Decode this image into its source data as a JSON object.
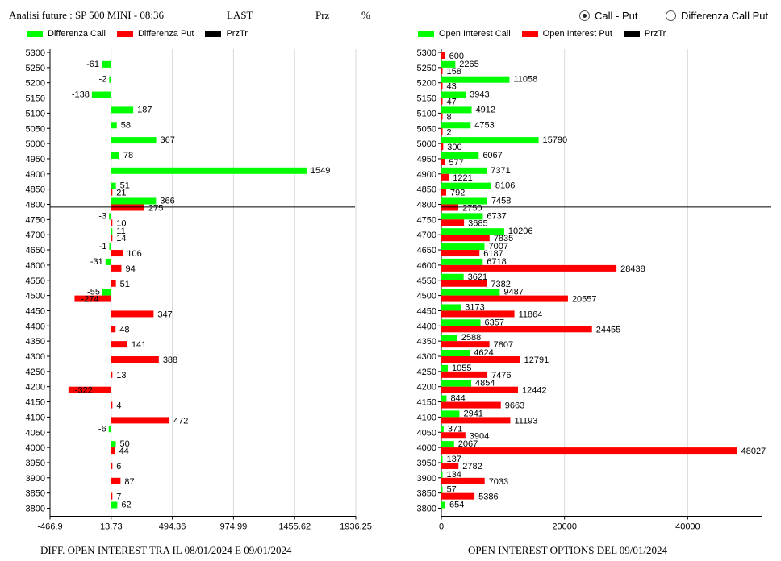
{
  "header": {
    "title": "Analisi future : SP 500 MINI - 08:36",
    "last_label": "LAST",
    "prz_label": "Prz",
    "pct_label": "%"
  },
  "mode_options": [
    {
      "label": "Call - Put",
      "selected": true
    },
    {
      "label": "Differenza Call Put",
      "selected": false
    }
  ],
  "colors": {
    "call": "#00ff00",
    "put": "#ff0000",
    "price": "#000000"
  },
  "chart_data": [
    {
      "type": "bar",
      "orientation": "horizontal",
      "xlabel": "DIFF. OPEN INTEREST TRA IL 08/01/2024 E 09/01/2024",
      "legend": [
        "Differenza Call",
        "Differenza Put",
        "PrzTr"
      ],
      "legend_position": "top",
      "categories": [
        5300,
        5250,
        5200,
        5150,
        5100,
        5050,
        5000,
        4950,
        4900,
        4850,
        4800,
        4750,
        4700,
        4650,
        4600,
        4550,
        4500,
        4450,
        4400,
        4350,
        4300,
        4250,
        4200,
        4150,
        4100,
        4050,
        4000,
        3950,
        3900,
        3850,
        3800
      ],
      "x_ticks": [
        "-466.9",
        "13.73",
        "494.36",
        "974.99",
        "1455.62",
        "1936.25"
      ],
      "xlim": [
        -466.9,
        1936.25
      ],
      "price_level": 4791,
      "series": [
        {
          "name": "Differenza Call",
          "values": [
            null,
            -61,
            -2,
            -138,
            187,
            58,
            367,
            78,
            1549,
            51,
            366,
            -3,
            11,
            -1,
            -31,
            null,
            -55,
            null,
            null,
            null,
            null,
            null,
            null,
            null,
            null,
            -6,
            50,
            null,
            null,
            null,
            62
          ]
        },
        {
          "name": "Differenza Put",
          "values": [
            null,
            null,
            null,
            null,
            null,
            null,
            null,
            null,
            null,
            21,
            275,
            10,
            14,
            106,
            94,
            51,
            -274,
            347,
            48,
            141,
            388,
            13,
            -322,
            4,
            472,
            null,
            44,
            6,
            87,
            7,
            null
          ]
        }
      ]
    },
    {
      "type": "bar",
      "orientation": "horizontal",
      "xlabel": "OPEN INTEREST OPTIONS DEL 09/01/2024",
      "legend": [
        "Open Interest Call",
        "Open Interest Put",
        "PrzTr"
      ],
      "legend_position": "top",
      "categories": [
        5300,
        5250,
        5200,
        5150,
        5100,
        5050,
        5000,
        4950,
        4900,
        4850,
        4800,
        4750,
        4700,
        4650,
        4600,
        4550,
        4500,
        4450,
        4400,
        4350,
        4300,
        4250,
        4200,
        4150,
        4100,
        4050,
        4000,
        3950,
        3900,
        3850,
        3800
      ],
      "x_ticks": [
        "0",
        "20000",
        "40000"
      ],
      "xlim": [
        0,
        52000
      ],
      "price_level": 4791,
      "series": [
        {
          "name": "Open Interest Call",
          "values": [
            null,
            2265,
            11058,
            3943,
            4912,
            4753,
            15790,
            6067,
            7371,
            8106,
            7458,
            6737,
            10206,
            7007,
            6718,
            3621,
            9487,
            3173,
            6357,
            2588,
            4624,
            1055,
            4854,
            844,
            2941,
            371,
            2067,
            137,
            134,
            57,
            654
          ]
        },
        {
          "name": "Open Interest Put",
          "values": [
            600,
            158,
            43,
            47,
            8,
            2,
            300,
            577,
            1221,
            792,
            2750,
            3685,
            7835,
            6187,
            28438,
            7382,
            20557,
            11864,
            24455,
            7807,
            12791,
            7476,
            12442,
            9663,
            11193,
            3904,
            48027,
            2782,
            7033,
            5386,
            null
          ]
        }
      ]
    }
  ]
}
